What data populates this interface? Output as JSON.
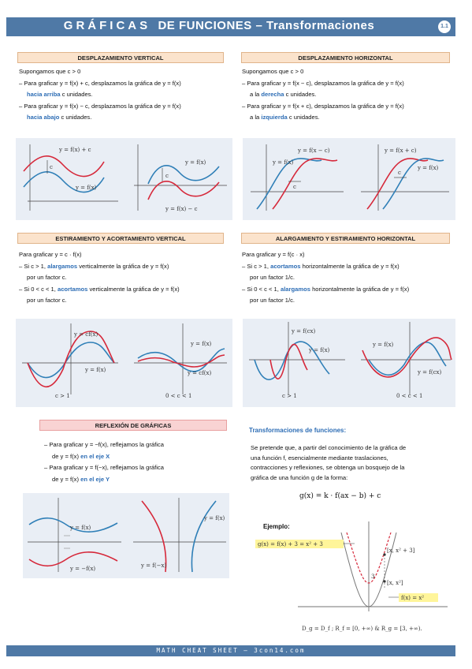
{
  "header": {
    "title_spaced": "GRÁFICAS",
    "title_rest": "DE FUNCIONES – Transformaciones",
    "badge": "1.1"
  },
  "sections": {
    "vertical_shift": {
      "title": "DESPLAZAMIENTO VERTICAL",
      "intro": "Supongamos que c > 0",
      "line1a": "– Para graficar y = f(x) + c, desplazamos la gráfica de y = f(x)",
      "line1b_hl": "hacia arriba",
      "line1b_rest": " c unidades.",
      "line2a": "– Para graficar y = f(x) − c, desplazamos la gráfica de y = f(x)",
      "line2b_hl": "hacia abajo",
      "line2b_rest": " c unidades."
    },
    "horizontal_shift": {
      "title": "DESPLAZAMIENTO HORIZONTAL",
      "intro": "Supongamos que c > 0",
      "line1a": "– Para graficar y = f(x − c), desplazamos la gráfica de y = f(x)",
      "line1b_pre": "a la ",
      "line1b_hl": "derecha",
      "line1b_rest": " c unidades.",
      "line2a": "– Para graficar y = f(x + c), desplazamos la gráfica de y = f(x)",
      "line2b_pre": "a la ",
      "line2b_hl": "izquierda",
      "line2b_rest": " c unidades."
    },
    "vertical_stretch": {
      "title": "ESTIRAMIENTO Y ACORTAMIENTO VERTICAL",
      "intro": "Para graficar y = c · f(x)",
      "line1_pre": "– Si c > 1, ",
      "line1_hl": "alargamos",
      "line1_rest": " verticalmente la gráfica de  y = f(x)",
      "line1b": "por un factor c.",
      "line2_pre": "– Si 0 < c < 1, ",
      "line2_hl": "acortamos",
      "line2_rest": " verticalmente la gráfica de  y = f(x)",
      "line2b": "por un factor c."
    },
    "horizontal_stretch": {
      "title": "ALARGAMIENTO Y ESTIRAMIENTO HORIZONTAL",
      "intro": "Para graficar y = f(c · x)",
      "line1_pre": "– Si c > 1, ",
      "line1_hl": "acortamos",
      "line1_rest": " horizontalmente la gráfica de  y = f(x)",
      "line1b": "por un factor 1/c.",
      "line2_pre": "– Si 0 < c < 1, ",
      "line2_hl": "alargamos",
      "line2_rest": " horizontalmente la gráfica de  y = f(x)",
      "line2b": "por un factor 1/c."
    },
    "reflection": {
      "title": "REFLEXIÓN DE GRÁFICAS",
      "line1": "– Para graficar y = −f(x), reflejamos la gráfica",
      "line1b_pre": "de  y = f(x) ",
      "line1b_hl": "en el eje X",
      "line2": "– Para graficar y = f(−x), reflejamos la gráfica",
      "line2b_pre": "de  y = f(x) ",
      "line2b_hl": "en el eje Y"
    },
    "transformations": {
      "title": "Transformaciones de funciones:",
      "body1": "Se pretende que, a partir del conocimiento de la gráfica de",
      "body2": "una función f, esencialmente mediante traslaciones,",
      "body3": "contracciones y reflexiones, se obtenga un bosquejo de la",
      "body4": "gráfica de una función g de la forma:",
      "formula": "g(x) = k · f(ax − b) + c",
      "example": "Ejemplo:"
    }
  },
  "graph_labels": {
    "vs_up": "y = f(x) + c",
    "vs_f": "y = f(x)",
    "vs_c": "c",
    "vs_f2": "y = f(x)",
    "vs_down": "y = f(x) − c",
    "hs_minus": "y = f(x − c)",
    "hs_f": "y = f(x)",
    "hs_c": "c",
    "hs_plus": "y = f(x + c)",
    "hs_f2": "y = f(x)",
    "vst_cf": "y = cf(x)",
    "vst_f": "y = f(x)",
    "vst_cond1": "c > 1",
    "vst_f2": "y = f(x)",
    "vst_cf2": "y = cf(x)",
    "vst_cond2": "0 < c < 1",
    "hst_fcx": "y = f(cx)",
    "hst_f": "y = f(x)",
    "hst_cond1": "c > 1",
    "hst_f2": "y = f(x)",
    "hst_fcx2": "y = f(cx)",
    "hst_cond2": "0 < c < 1",
    "ref_f": "y = f(x)",
    "ref_negf": "y = −f(x)",
    "ref_f2": "y = f(x)",
    "ref_fneg": "y = f(−x)",
    "ex_g": "g(x) = f(x) + 3 = x² + 3",
    "ex_f": "f(x) = x²",
    "ex_pt1": "[x, x² + 3]",
    "ex_pt2": "[x, x²]",
    "ex_3": "3",
    "ex_domain": "D_g = D_f ; R_f = [0, +∞) & R_g = [3, +∞)."
  },
  "footer": "MATH CHEAT SHEET – 3con14.com",
  "colors": {
    "header": "#4f79a6",
    "red_curve": "#d6283a",
    "blue_curve": "#2f7fb7",
    "highlight": "#2d6db5",
    "section_bg": "#fbe3cc",
    "panel_bg": "#e9eef5"
  }
}
